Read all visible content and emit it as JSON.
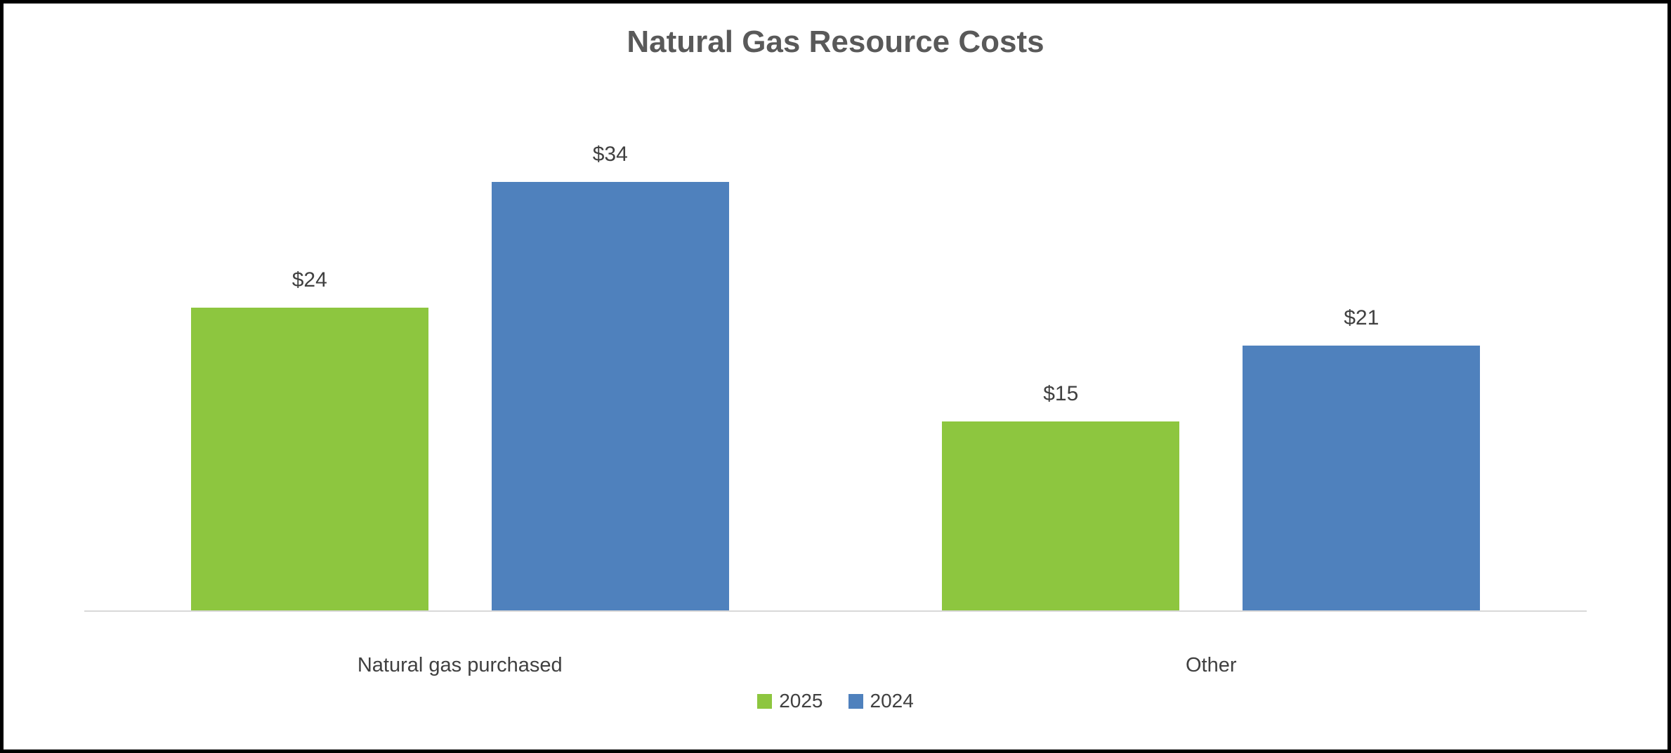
{
  "chart_data": {
    "type": "bar",
    "title": "Natural Gas Resource Costs",
    "categories": [
      "Natural gas purchased",
      "Other"
    ],
    "series": [
      {
        "name": "2025",
        "color": "#8DC63F",
        "values": [
          24,
          15
        ],
        "labels": [
          "$24",
          "$15"
        ]
      },
      {
        "name": "2024",
        "color": "#4F81BD",
        "values": [
          34,
          21
        ],
        "labels": [
          "$34",
          "$21"
        ]
      }
    ],
    "xlabel": "",
    "ylabel": "",
    "ylim": [
      0,
      40
    ],
    "grid": false,
    "legend_position": "bottom",
    "axis_color": "#D9D9D9",
    "label_color": "#404040",
    "title_color": "#595959",
    "background_color": "#FFFFFF",
    "border_color": "#000000"
  }
}
